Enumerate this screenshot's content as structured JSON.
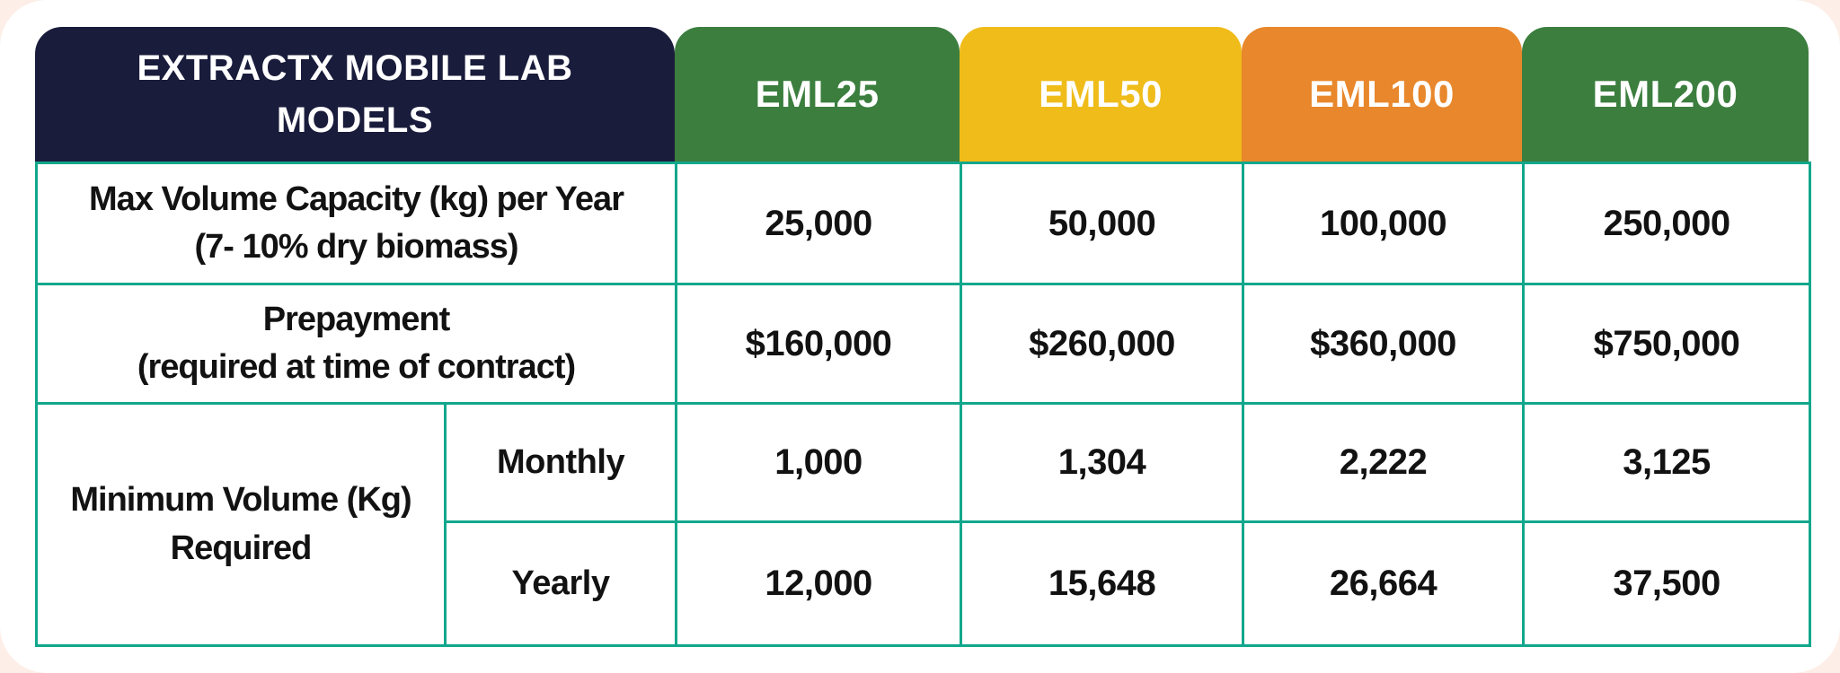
{
  "theme": {
    "page_pink": "#fdeee7",
    "card_white": "#ffffff",
    "navy": "#1a1c3c",
    "teal_border": "#12a78c",
    "text_dark": "#121212",
    "text_light": "#ffffff"
  },
  "table": {
    "title": {
      "line1": "EXTRACTX MOBILE LAB",
      "line2": "MODELS"
    },
    "columns": [
      {
        "label": "EML25",
        "color": "#3b7e3e"
      },
      {
        "label": "EML50",
        "color": "#efbc1a"
      },
      {
        "label": "EML100",
        "color": "#e8872b"
      },
      {
        "label": "EML200",
        "color": "#3b7e3e"
      }
    ],
    "rows": [
      {
        "label_line1": "Max Volume Capacity (kg) per Year",
        "label_line2": "(7- 10% dry biomass)",
        "values": [
          "25,000",
          "50,000",
          "100,000",
          "250,000"
        ]
      },
      {
        "label_line1": "Prepayment",
        "label_line2": "(required at time of contract)",
        "values": [
          "$160,000",
          "$260,000",
          "$360,000",
          "$750,000"
        ]
      }
    ],
    "group": {
      "label_line1": "Minimum Volume (Kg)",
      "label_line2": "Required",
      "sub_rows": [
        {
          "label": "Monthly",
          "values": [
            "1,000",
            "1,304",
            "2,222",
            "3,125"
          ]
        },
        {
          "label": "Yearly",
          "values": [
            "12,000",
            "15,648",
            "26,664",
            "37,500"
          ]
        }
      ]
    }
  },
  "chart_data": {
    "type": "table",
    "title": "EXTRACTX MOBILE LAB MODELS",
    "columns": [
      "EML25",
      "EML50",
      "EML100",
      "EML200"
    ],
    "rows": [
      {
        "label": "Max Volume Capacity (kg) per Year (7- 10% dry biomass)",
        "values": [
          25000,
          50000,
          100000,
          250000
        ]
      },
      {
        "label": "Prepayment (required at time of contract)",
        "values": [
          "$160,000",
          "$260,000",
          "$360,000",
          "$750,000"
        ]
      },
      {
        "label": "Minimum Volume (Kg) Required - Monthly",
        "values": [
          1000,
          1304,
          2222,
          3125
        ]
      },
      {
        "label": "Minimum Volume (Kg) Required - Yearly",
        "values": [
          12000,
          15648,
          26664,
          37500
        ]
      }
    ]
  }
}
